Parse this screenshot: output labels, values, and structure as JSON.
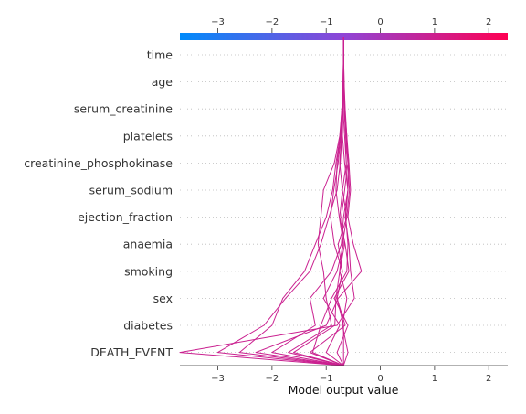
{
  "chart_data": {
    "type": "line",
    "subtype": "shap-decision-plot",
    "title": "",
    "xlabel": "Model output value",
    "ylabel": "",
    "xlim": [
      -3.7,
      2.35
    ],
    "xticks": [
      -3,
      -2,
      -1,
      0,
      1,
      2
    ],
    "xtick_labels": [
      "−3",
      "−2",
      "−1",
      "0",
      "1",
      "2"
    ],
    "features": [
      "time",
      "age",
      "serum_creatinine",
      "platelets",
      "creatinine_phosphokinase",
      "serum_sodium",
      "ejection_fraction",
      "anaemia",
      "smoking",
      "sex",
      "diabetes",
      "DEATH_EVENT"
    ],
    "base_value": -0.68,
    "grid": "dotted horizontal",
    "colorbar": {
      "position": "top",
      "range": [
        -3.7,
        2.35
      ],
      "colors": [
        "#008bfb",
        "#ff0052"
      ]
    },
    "series": [
      {
        "values": [
          -0.68,
          -0.68,
          -0.69,
          -0.7,
          -0.66,
          -0.6,
          -0.65,
          -0.58,
          -0.55,
          -0.48,
          -0.8,
          -3.7
        ]
      },
      {
        "values": [
          -0.68,
          -0.69,
          -0.7,
          -0.71,
          -0.74,
          -0.8,
          -0.95,
          -1.1,
          -1.3,
          -1.75,
          -2.15,
          -3.0
        ]
      },
      {
        "values": [
          -0.68,
          -0.68,
          -0.7,
          -0.74,
          -0.82,
          -0.88,
          -1.0,
          -1.2,
          -1.4,
          -1.8,
          -2.0,
          -2.6
        ]
      },
      {
        "values": [
          -0.68,
          -0.67,
          -0.66,
          -0.62,
          -0.58,
          -0.55,
          -0.6,
          -0.5,
          -0.35,
          -0.78,
          -1.0,
          -2.3
        ]
      },
      {
        "values": [
          -0.68,
          -0.68,
          -0.69,
          -0.66,
          -0.63,
          -0.6,
          -0.68,
          -0.72,
          -0.9,
          -1.3,
          -1.2,
          -2.0
        ]
      },
      {
        "values": [
          -0.68,
          -0.68,
          -0.71,
          -0.75,
          -0.85,
          -1.05,
          -1.1,
          -1.15,
          -1.05,
          -1.0,
          -0.9,
          -1.7
        ]
      },
      {
        "values": [
          -0.68,
          -0.68,
          -0.67,
          -0.64,
          -0.6,
          -0.57,
          -0.62,
          -0.7,
          -0.75,
          -0.82,
          -0.84,
          -1.6
        ]
      },
      {
        "values": [
          -0.68,
          -0.68,
          -0.7,
          -0.73,
          -0.78,
          -0.86,
          -0.92,
          -0.85,
          -0.7,
          -0.8,
          -0.65,
          -1.3
        ]
      },
      {
        "values": [
          -0.68,
          -0.68,
          -0.66,
          -0.63,
          -0.58,
          -0.6,
          -0.64,
          -0.6,
          -0.62,
          -0.9,
          -1.1,
          -1.25
        ]
      },
      {
        "values": [
          -0.68,
          -0.69,
          -0.71,
          -0.74,
          -0.8,
          -0.82,
          -0.76,
          -0.68,
          -0.8,
          -1.05,
          -0.75,
          -1.0
        ]
      },
      {
        "values": [
          -0.68,
          -0.68,
          -0.66,
          -0.64,
          -0.63,
          -0.7,
          -0.75,
          -0.65,
          -0.58,
          -0.85,
          -0.6,
          -0.8
        ]
      },
      {
        "values": [
          -0.68,
          -0.67,
          -0.65,
          -0.62,
          -0.6,
          -0.66,
          -0.72,
          -0.66,
          -0.75,
          -0.62,
          -0.7,
          -0.6
        ]
      },
      {
        "values": [
          -0.68,
          -0.68,
          -0.7,
          -0.72,
          -0.75,
          -0.7,
          -0.62,
          -0.78,
          -0.7,
          -0.8,
          -0.68,
          -0.68
        ]
      }
    ]
  }
}
